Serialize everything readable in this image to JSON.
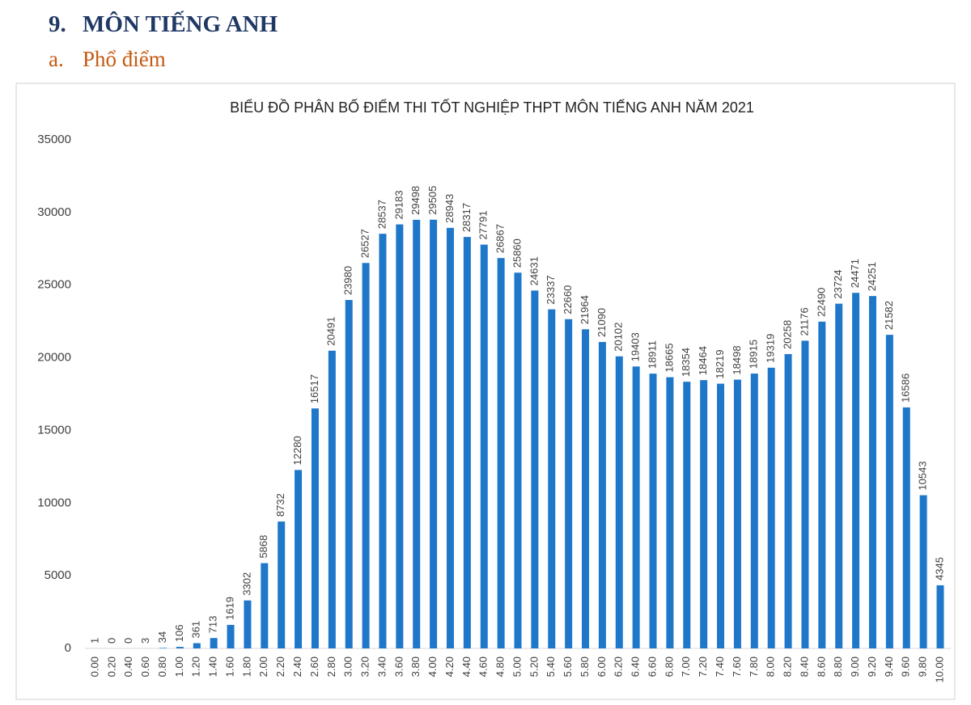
{
  "heading": {
    "number": "9.",
    "title": "MÔN TIẾNG ANH"
  },
  "subheading": {
    "number": "a.",
    "title": "Phổ điểm"
  },
  "chart_data": {
    "type": "bar",
    "title": "BIỂU ĐỒ PHÂN BỐ ĐIỂM THI TỐT NGHIỆP THPT MÔN TIẾNG ANH NĂM 2021",
    "categories": [
      "0.00",
      "0.20",
      "0.40",
      "0.60",
      "0.80",
      "1.00",
      "1.20",
      "1.40",
      "1.60",
      "1.80",
      "2.00",
      "2.20",
      "2.40",
      "2.60",
      "2.80",
      "3.00",
      "3.20",
      "3.40",
      "3.60",
      "3.80",
      "4.00",
      "4.20",
      "4.40",
      "4.60",
      "4.80",
      "5.00",
      "5.20",
      "5.40",
      "5.60",
      "5.80",
      "6.00",
      "6.20",
      "6.40",
      "6.60",
      "6.80",
      "7.00",
      "7.20",
      "7.40",
      "7.60",
      "7.80",
      "8.00",
      "8.20",
      "8.40",
      "8.60",
      "8.80",
      "9.00",
      "9.20",
      "9.40",
      "9.60",
      "9.80",
      "10.00"
    ],
    "values": [
      1,
      0,
      0,
      3,
      34,
      106,
      361,
      713,
      1619,
      3302,
      5868,
      8732,
      12280,
      16517,
      20491,
      23980,
      26527,
      28537,
      29183,
      29498,
      29505,
      28943,
      28317,
      27791,
      26867,
      25860,
      24631,
      23337,
      22660,
      21964,
      21090,
      20102,
      19403,
      18911,
      18665,
      18354,
      18464,
      18219,
      18498,
      18915,
      19319,
      20258,
      21176,
      22490,
      23724,
      24471,
      24251,
      21582,
      16586,
      10543,
      4345
    ],
    "color": "#1f77c9",
    "ylim": [
      0,
      35000
    ],
    "yticks": [
      0,
      5000,
      10000,
      15000,
      20000,
      25000,
      30000,
      35000
    ],
    "grid": false
  }
}
